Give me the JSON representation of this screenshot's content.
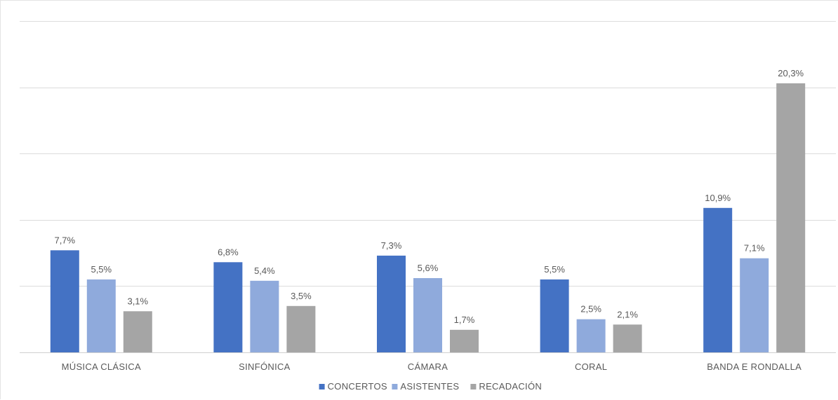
{
  "chart_data": {
    "type": "bar",
    "title": "",
    "xlabel": "",
    "ylabel": "",
    "ylim": [
      0,
      25
    ],
    "grid": true,
    "legend_position": "bottom",
    "categories": [
      "MÚSICA CLÁSICA",
      "SINFÓNICA",
      "CÁMARA",
      "CORAL",
      "BANDA E RONDALLA"
    ],
    "series": [
      {
        "name": "CONCERTOS",
        "color": "#4472c4",
        "values": [
          7.7,
          6.8,
          7.3,
          5.5,
          10.9
        ],
        "labels": [
          "7,7%",
          "6,8%",
          "7,3%",
          "5,5%",
          "10,9%"
        ]
      },
      {
        "name": "ASISTENTES",
        "color": "#8faadc",
        "values": [
          5.5,
          5.4,
          5.6,
          2.5,
          7.1
        ],
        "labels": [
          "5,5%",
          "5,4%",
          "5,6%",
          "2,5%",
          "7,1%"
        ]
      },
      {
        "name": "RECADACIÓN",
        "color": "#a5a5a5",
        "values": [
          3.1,
          3.5,
          1.7,
          2.1,
          20.3
        ],
        "labels": [
          "3,1%",
          "3,5%",
          "1,7%",
          "2,1%",
          "20,3%"
        ]
      }
    ]
  }
}
